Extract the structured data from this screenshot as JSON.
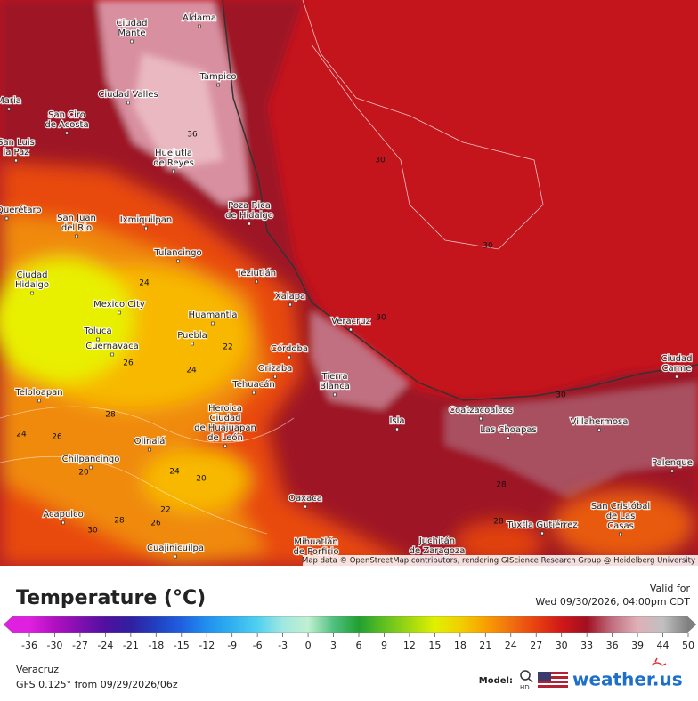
{
  "map": {
    "cities": [
      {
        "lines": [
          "Aldama"
        ]
      },
      {
        "lines": [
          "Ciudad",
          "Mante"
        ]
      },
      {
        "lines": [
          "Tampico"
        ]
      },
      {
        "lines": [
          "Ciudad Valles"
        ]
      },
      {
        "lines": [
          "San Ciro",
          "de Acosta"
        ]
      },
      {
        "lines": [
          "Huejutla",
          "de Reyes"
        ]
      },
      {
        "lines": [
          "Poza Rica",
          "de Hidalgo"
        ]
      },
      {
        "lines": [
          "Querétaro"
        ]
      },
      {
        "lines": [
          "San Juan",
          "del Rio"
        ]
      },
      {
        "lines": [
          "Ixmiquilpan"
        ]
      },
      {
        "lines": [
          "Tulancingo"
        ]
      },
      {
        "lines": [
          "Teziutlán"
        ]
      },
      {
        "lines": [
          "Ciudad",
          "Hidalgo"
        ]
      },
      {
        "lines": [
          "Mexico City"
        ]
      },
      {
        "lines": [
          "Xalapa"
        ]
      },
      {
        "lines": [
          "Huamantla"
        ]
      },
      {
        "lines": [
          "Veracruz"
        ]
      },
      {
        "lines": [
          "Toluca"
        ]
      },
      {
        "lines": [
          "Cuernavaca"
        ]
      },
      {
        "lines": [
          "Puebla"
        ]
      },
      {
        "lines": [
          "Córdoba"
        ]
      },
      {
        "lines": [
          "Orizaba"
        ]
      },
      {
        "lines": [
          "Tierra",
          "Blanca"
        ]
      },
      {
        "lines": [
          "Tehuacán"
        ]
      },
      {
        "lines": [
          "Teloloapan"
        ]
      },
      {
        "lines": [
          "Heroica",
          "Ciudad",
          "de Huajuapan",
          "de León"
        ]
      },
      {
        "lines": [
          "Isla"
        ]
      },
      {
        "lines": [
          "Coatzacoalcos"
        ]
      },
      {
        "lines": [
          "Villahermosa"
        ]
      },
      {
        "lines": [
          "Las Choapas"
        ]
      },
      {
        "lines": [
          "Olinalá"
        ]
      },
      {
        "lines": [
          "Chilpancingo"
        ]
      },
      {
        "lines": [
          "Palenque"
        ]
      },
      {
        "lines": [
          "Oaxaca"
        ]
      },
      {
        "lines": [
          "San Cristóbal",
          "de Las",
          "Casas"
        ]
      },
      {
        "lines": [
          "Acapulco"
        ]
      },
      {
        "lines": [
          "Tuxtla Gutiérrez"
        ]
      },
      {
        "lines": [
          "Cuajinicuilpa"
        ]
      },
      {
        "lines": [
          "Mihuatlán",
          "de Porfirio"
        ]
      },
      {
        "lines": [
          "Juchitán",
          "de Zaragoza"
        ]
      },
      {
        "lines": [
          "Ciudad",
          "Carme"
        ]
      },
      {
        "lines": [
          "San Luis",
          "la Paz"
        ]
      },
      {
        "lines": [
          "Maria"
        ]
      }
    ],
    "contours": [
      30,
      30,
      30,
      30,
      36,
      24,
      26,
      28,
      24,
      22,
      24,
      26,
      20,
      24,
      20,
      22,
      26,
      28,
      30,
      28,
      28
    ],
    "attribution": "Map data © OpenStreetMap contributors, rendering GIScience Research Group @ Heidelberg University"
  },
  "legend": {
    "title": "Temperature (°C)",
    "ticks": [
      -36,
      -30,
      -27,
      -24,
      -21,
      -18,
      -15,
      -12,
      -9,
      -6,
      -3,
      0,
      3,
      6,
      9,
      12,
      15,
      18,
      21,
      24,
      27,
      30,
      33,
      36,
      39,
      44,
      50
    ],
    "colors": [
      "#e020e0",
      "#b010c0",
      "#8010b0",
      "#5010a0",
      "#3020a0",
      "#2040c0",
      "#2060e0",
      "#2090f0",
      "#30b0f0",
      "#50d0f0",
      "#a0e8e0",
      "#c0f0d0",
      "#50c080",
      "#20a030",
      "#60c020",
      "#a0d810",
      "#e0f000",
      "#f0d000",
      "#f8a000",
      "#f07010",
      "#e84010",
      "#d01818",
      "#a01020",
      "#c07080",
      "#e0b0b8",
      "#c0c0c0",
      "#808080"
    ]
  },
  "valid": {
    "label": "Valid for",
    "time": "Wed 09/30/2026, 04:00pm CDT"
  },
  "footer": {
    "location": "Veracruz",
    "model_run": "GFS 0.125° from  09/29/2026/06z",
    "model_label": "Model:",
    "hd": "HD",
    "brand": "weather.us"
  }
}
